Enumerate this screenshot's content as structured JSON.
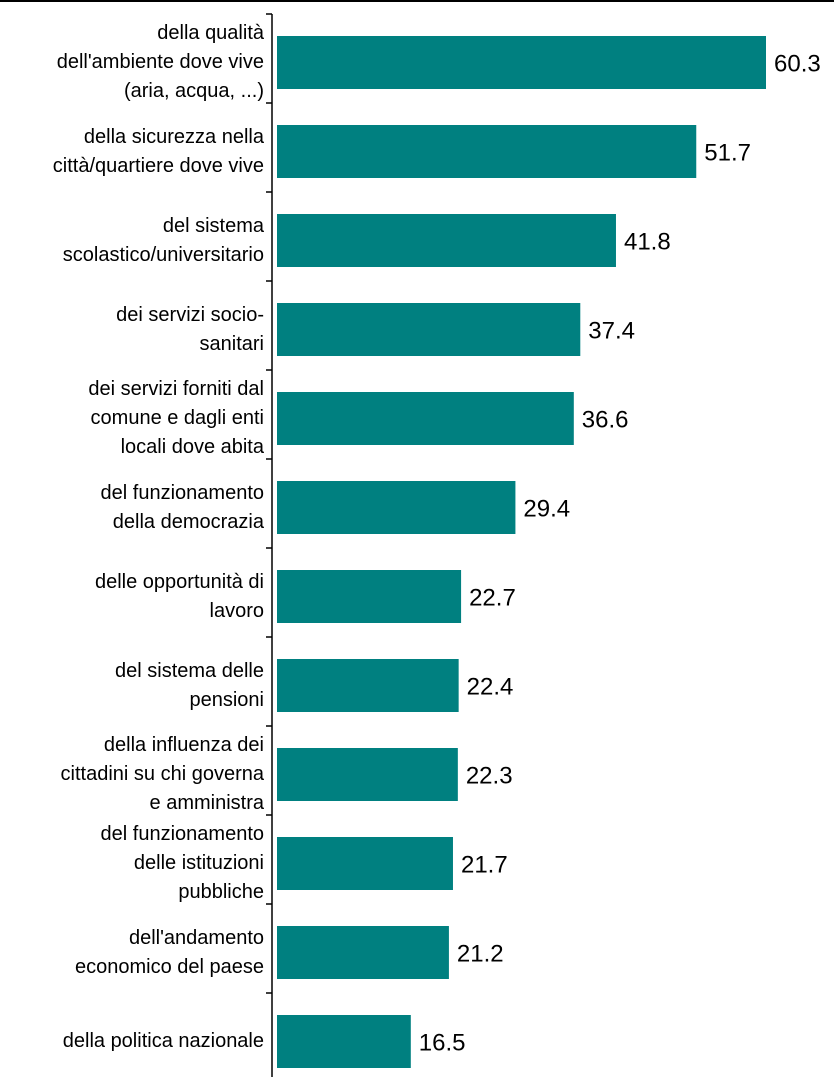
{
  "chart_data": {
    "type": "bar",
    "orientation": "horizontal",
    "title": "",
    "xlabel": "",
    "ylabel": "",
    "xlim": [
      0,
      60.3
    ],
    "grid": false,
    "legend": "none",
    "bar_color": "#008080",
    "categories": [
      "della qualità\ndell'ambiente dove vive\n(aria, acqua, ...)",
      "della sicurezza nella\ncittà/quartiere dove vive",
      "del sistema\nscolastico/universitario",
      "dei servizi socio-\nsanitari",
      "dei servizi forniti dal\ncomune e dagli enti\nlocali dove abita",
      "del funzionamento\ndella democrazia",
      "delle opportunità di\nlavoro",
      "del sistema delle\npensioni",
      "della influenza dei\ncittadini su chi governa\ne amministra",
      "del funzionamento\ndelle istituzioni\npubbliche",
      "dell'andamento\neconomico del paese",
      "della politica nazionale"
    ],
    "values": [
      60.3,
      51.7,
      41.8,
      37.4,
      36.6,
      29.4,
      22.7,
      22.4,
      22.3,
      21.7,
      21.2,
      16.5
    ],
    "value_labels": [
      "60.3",
      "51.7",
      "41.8",
      "37.4",
      "36.6",
      "29.4",
      "22.7",
      "22.4",
      "22.3",
      "21.7",
      "21.2",
      "16.5"
    ]
  }
}
